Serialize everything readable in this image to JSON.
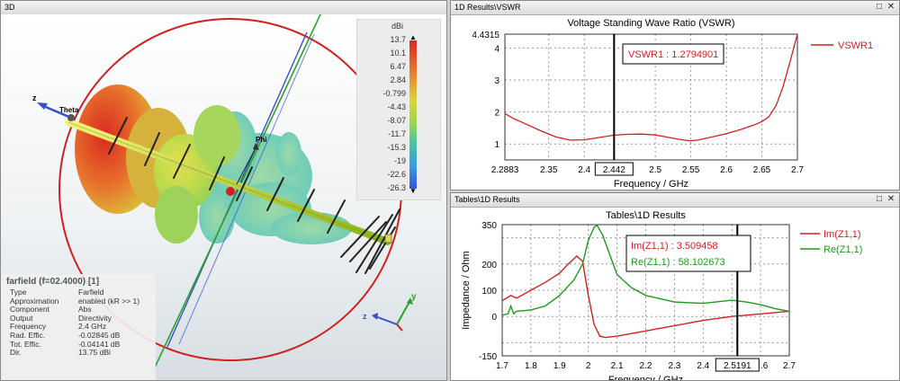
{
  "panel3d": {
    "title": "3D",
    "colorbar": {
      "unit": "dBi",
      "labels": [
        "13.7",
        "10.1",
        "6.47",
        "2.84",
        "-0.799",
        "-4.43",
        "-8.07",
        "-11.7",
        "-15.3",
        "-19",
        "-22.6",
        "-26.3"
      ]
    },
    "axes": {
      "z": "z",
      "theta": "Theta",
      "phi": "Phi",
      "y": "y"
    },
    "info": {
      "title": "farfield (f=02.4000) [1]",
      "rows": [
        {
          "k": "Type",
          "v": "Farfield"
        },
        {
          "k": "Approximation",
          "v": "enabled (kR >> 1)"
        },
        {
          "k": "Component",
          "v": "Abs"
        },
        {
          "k": "Output",
          "v": "Directivity"
        },
        {
          "k": "Frequency",
          "v": "2.4 GHz"
        },
        {
          "k": "Rad. Effic.",
          "v": "-0.02845 dB"
        },
        {
          "k": "Tot. Effic.",
          "v": "-0.04141 dB"
        },
        {
          "k": "Dir.",
          "v": "13.75 dBi"
        }
      ]
    }
  },
  "panelVswr": {
    "title": "1D Results\\VSWR",
    "chart_title": "Voltage Standing Wave Ratio (VSWR)",
    "xlabel": "Frequency / GHz",
    "marker_label": "VSWR1 : 1.2794901",
    "marker_x": "2.442",
    "legend": "VSWR1"
  },
  "panelZ": {
    "title": "Tables\\1D Results",
    "chart_title": "Tables\\1D Results",
    "xlabel": "Frequency / GHz",
    "ylabel": "Impedance / Ohm",
    "marker_x": "2.5191",
    "marker_im": "Im(Z1,1) : 3.509458",
    "marker_re": "Re(Z1,1) : 58.102673",
    "legend_im": "Im(Z1,1)",
    "legend_re": "Re(Z1,1)"
  },
  "colors": {
    "red": "#d42020",
    "green": "#1e9a1e",
    "blue": "#3a4fd0"
  },
  "chart_data": [
    {
      "type": "line",
      "title": "Voltage Standing Wave Ratio (VSWR)",
      "xlabel": "Frequency / GHz",
      "ylabel": "",
      "xlim": [
        2.2883,
        2.7
      ],
      "ylim": [
        0.5,
        4.4315
      ],
      "xticks": [
        "2.2883",
        "2.35",
        "2.4",
        "2.442",
        "2.5",
        "2.55",
        "2.6",
        "2.65",
        "2.7"
      ],
      "yticks": [
        "1",
        "2",
        "3",
        "4",
        "4.4315"
      ],
      "series": [
        {
          "name": "VSWR1",
          "x": [
            2.2883,
            2.3,
            2.32,
            2.34,
            2.36,
            2.38,
            2.4,
            2.42,
            2.44,
            2.46,
            2.48,
            2.5,
            2.52,
            2.54,
            2.55,
            2.56,
            2.58,
            2.6,
            2.62,
            2.64,
            2.65,
            2.66,
            2.67,
            2.68,
            2.69,
            2.7
          ],
          "y": [
            1.95,
            1.8,
            1.6,
            1.4,
            1.22,
            1.12,
            1.13,
            1.2,
            1.27,
            1.3,
            1.31,
            1.28,
            1.2,
            1.12,
            1.1,
            1.12,
            1.22,
            1.32,
            1.45,
            1.6,
            1.7,
            1.85,
            2.2,
            2.8,
            3.6,
            4.4315
          ]
        }
      ],
      "marker": {
        "x": 2.442,
        "label": "VSWR1 : 1.2794901"
      }
    },
    {
      "type": "line",
      "title": "Tables\\1D Results",
      "xlabel": "Frequency / GHz",
      "ylabel": "Impedance / Ohm",
      "xlim": [
        1.7,
        2.7
      ],
      "ylim": [
        -150,
        350
      ],
      "xticks": [
        "1.7",
        "1.8",
        "1.9",
        "2",
        "2.1",
        "2.2",
        "2.3",
        "2.4",
        "2.5191",
        ".6",
        "2.7"
      ],
      "yticks": [
        "350",
        "200",
        "100",
        "0",
        "-150"
      ],
      "series": [
        {
          "name": "Im(Z1,1)",
          "x": [
            1.7,
            1.73,
            1.75,
            1.8,
            1.85,
            1.9,
            1.93,
            1.96,
            1.98,
            2.0,
            2.02,
            2.04,
            2.06,
            2.1,
            2.15,
            2.2,
            2.3,
            2.4,
            2.5,
            2.6,
            2.7
          ],
          "y": [
            60,
            80,
            70,
            100,
            130,
            165,
            200,
            230,
            210,
            80,
            -30,
            -75,
            -80,
            -75,
            -65,
            -55,
            -35,
            -15,
            0,
            10,
            20
          ]
        },
        {
          "name": "Re(Z1,1)",
          "x": [
            1.7,
            1.72,
            1.73,
            1.74,
            1.75,
            1.8,
            1.85,
            1.9,
            1.95,
            1.98,
            2.0,
            2.02,
            2.03,
            2.05,
            2.08,
            2.1,
            2.15,
            2.2,
            2.3,
            2.4,
            2.5,
            2.55,
            2.6,
            2.65,
            2.7
          ],
          "y": [
            5,
            10,
            40,
            10,
            20,
            25,
            40,
            80,
            140,
            200,
            290,
            340,
            348,
            310,
            220,
            160,
            110,
            80,
            55,
            50,
            62,
            55,
            45,
            30,
            20
          ]
        }
      ],
      "marker": {
        "x": 2.5191,
        "labels": [
          "Im(Z1,1) : 3.509458",
          "Re(Z1,1) : 58.102673"
        ]
      }
    }
  ]
}
